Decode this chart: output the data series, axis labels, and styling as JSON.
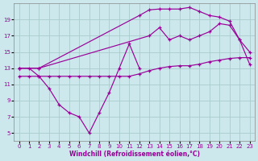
{
  "xlabel": "Windchill (Refroidissement éolien,°C)",
  "bg_color": "#cce8ec",
  "line_color": "#990099",
  "grid_color": "#aacccc",
  "xlim": [
    -0.5,
    23.5
  ],
  "ylim": [
    4.0,
    21.0
  ],
  "xticks": [
    0,
    1,
    2,
    3,
    4,
    5,
    6,
    7,
    8,
    9,
    10,
    11,
    12,
    13,
    14,
    15,
    16,
    17,
    18,
    19,
    20,
    21,
    22,
    23
  ],
  "yticks": [
    5,
    7,
    9,
    11,
    13,
    15,
    17,
    19
  ],
  "line1_x": [
    0,
    1,
    2,
    3,
    4,
    5,
    6,
    7,
    8,
    9,
    10,
    11,
    12
  ],
  "line1_y": [
    13,
    13,
    12,
    10.5,
    8.5,
    7.5,
    7,
    5,
    7.5,
    10,
    13,
    16,
    13
  ],
  "line2_x": [
    0,
    2,
    12,
    13,
    14,
    15,
    16,
    17,
    18,
    19,
    20,
    21,
    22,
    23
  ],
  "line2_y": [
    13,
    13,
    19.5,
    20.2,
    20.3,
    20.3,
    20.3,
    20.5,
    20.0,
    19.5,
    19.3,
    18.8,
    16.5,
    13.5
  ],
  "line3_x": [
    0,
    2,
    13,
    14,
    15,
    16,
    17,
    18,
    19,
    20,
    21,
    22,
    23
  ],
  "line3_y": [
    13,
    13,
    17,
    18,
    16.5,
    17,
    16.5,
    17,
    17.5,
    18.5,
    18.3,
    16.5,
    15
  ],
  "line4_x": [
    0,
    1,
    2,
    3,
    4,
    5,
    6,
    7,
    8,
    9,
    10,
    11,
    12,
    13,
    14,
    15,
    16,
    17,
    18,
    19,
    20,
    21,
    22,
    23
  ],
  "line4_y": [
    12,
    12,
    12,
    12,
    12,
    12,
    12,
    12,
    12,
    12,
    12,
    12,
    12.3,
    12.7,
    13.0,
    13.2,
    13.3,
    13.3,
    13.5,
    13.8,
    14.0,
    14.2,
    14.3,
    14.3
  ]
}
